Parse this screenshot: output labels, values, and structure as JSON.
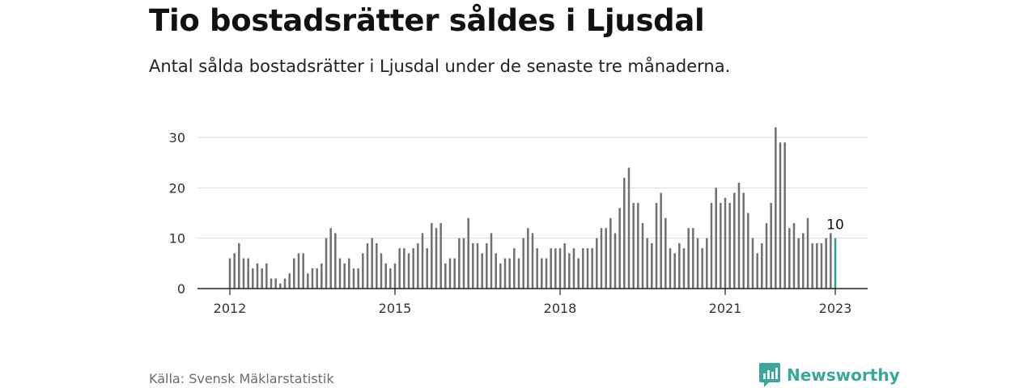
{
  "header": {
    "title": "Tio bostadsrätter såldes i Ljusdal",
    "subtitle": "Antal sålda bostadsrätter i Ljusdal under de senaste tre månaderna."
  },
  "footer": {
    "source": "Källa: Svensk Mäklarstatistik",
    "brand": "Newsworthy"
  },
  "colors": {
    "bar": "#707070",
    "highlight": "#2a9d8f",
    "brand": "#3aa79b",
    "grid": "#d9d9d9"
  },
  "chart_data": {
    "type": "bar",
    "x_start": "2012-01",
    "x_end": "2023-01",
    "xticks": [
      "2012",
      "2015",
      "2018",
      "2021",
      "2023"
    ],
    "yticks": [
      0,
      10,
      20,
      30
    ],
    "ylim": [
      0,
      34
    ],
    "grid": true,
    "highlight_last": true,
    "last_value_label": "10",
    "values": [
      6,
      7,
      9,
      6,
      6,
      4,
      5,
      4,
      5,
      2,
      2,
      1,
      2,
      3,
      6,
      7,
      7,
      3,
      4,
      4,
      5,
      10,
      12,
      11,
      6,
      5,
      6,
      4,
      4,
      7,
      9,
      10,
      9,
      7,
      5,
      4,
      5,
      8,
      8,
      7,
      8,
      9,
      11,
      8,
      13,
      12,
      13,
      5,
      6,
      6,
      10,
      10,
      14,
      9,
      9,
      7,
      9,
      11,
      7,
      5,
      6,
      6,
      8,
      6,
      10,
      12,
      11,
      8,
      6,
      6,
      8,
      8,
      8,
      9,
      7,
      8,
      6,
      8,
      8,
      8,
      10,
      12,
      12,
      14,
      11,
      16,
      22,
      24,
      17,
      17,
      13,
      10,
      9,
      17,
      19,
      14,
      8,
      7,
      9,
      8,
      12,
      12,
      10,
      8,
      10,
      17,
      20,
      17,
      18,
      17,
      19,
      21,
      19,
      15,
      10,
      7,
      9,
      13,
      17,
      32,
      29,
      29,
      12,
      13,
      10,
      11,
      14,
      9,
      9,
      9,
      10,
      11,
      10
    ]
  }
}
